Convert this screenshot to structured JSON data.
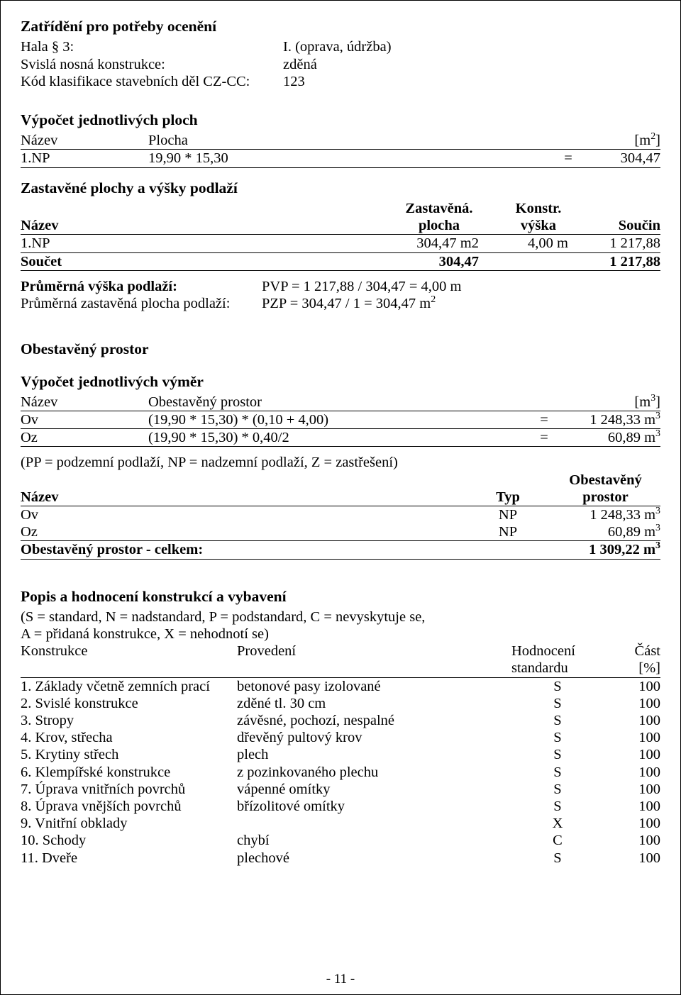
{
  "colors": {
    "text": "#000000",
    "background": "#ffffff",
    "border": "#000000"
  },
  "typography": {
    "font_family": "Times New Roman",
    "body_size_pt": 15,
    "heading_size_pt": 16
  },
  "header": {
    "title": "Zatřídění pro potřeby ocenění",
    "rows": [
      {
        "label": "Hala § 3:",
        "value": "I. (oprava, údržba)"
      },
      {
        "label": "Svislá nosná konstrukce:",
        "value": "zděná"
      },
      {
        "label": "Kód klasifikace stavebních děl CZ-CC:",
        "value": "123"
      }
    ]
  },
  "ploch": {
    "title": "Výpočet jednotlivých ploch",
    "head": {
      "c1": "Název",
      "c2": "Plocha",
      "c3": "[m",
      "c3sup": "2",
      "c3close": "]"
    },
    "row": {
      "name": "1.NP",
      "expr": "19,90 * 15,30",
      "eq": "=",
      "val": "304,47"
    }
  },
  "zp": {
    "title": "Zastavěné plochy a výšky podlaží",
    "head": {
      "c1": "Název",
      "c2a": "Zastavěná.",
      "c2b": "plocha",
      "c3a": "Konstr.",
      "c3b": "výška",
      "c4": "Součin"
    },
    "row": {
      "name": "1.NP",
      "plocha": "304,47 m2",
      "vyska": "4,00 m",
      "soucin": "1 217,88"
    },
    "sum": {
      "label": "Součet",
      "plocha": "304,47",
      "soucin": "1 217,88"
    }
  },
  "pv": {
    "r1": {
      "label": "Průměrná výška podlaží:",
      "val": "PVP = 1 217,88 / 304,47 = 4,00 m"
    },
    "r2": {
      "label": "Průměrná zastavěná plocha podlaží:",
      "val_pre": "PZP = 304,47 / 1 = 304,47 m",
      "sup": "2"
    }
  },
  "op": {
    "title": "Obestavěný prostor",
    "sub": "Výpočet jednotlivých výměr",
    "head": {
      "c1": "Název",
      "c2": "Obestavěný prostor",
      "c3pre": "[m",
      "c3sup": "3",
      "c3post": "]"
    },
    "rows": [
      {
        "name": "Ov",
        "expr": "(19,90 * 15,30) * (0,10 + 4,00)",
        "eq": "=",
        "valpre": "1 248,33 m",
        "sup": "3"
      },
      {
        "name": "Oz",
        "expr": "(19,90 * 15,30) * 0,40/2",
        "eq": "=",
        "valpre": "60,89 m",
        "sup": "3"
      }
    ],
    "note": "(PP = podzemní podlaží, NP = nadzemní podlaží, Z = zastřešení)",
    "thead": {
      "c1": "Název",
      "c2": "Typ",
      "c3a": "Obestavěný",
      "c3b": "prostor"
    },
    "trows": [
      {
        "name": "Ov",
        "typ": "NP",
        "valpre": "1 248,33 m",
        "sup": "3"
      },
      {
        "name": "Oz",
        "typ": "NP",
        "valpre": "60,89 m",
        "sup": "3"
      }
    ],
    "total": {
      "label": "Obestavěný prostor - celkem:",
      "valpre": "1 309,22 m",
      "sup": "3"
    }
  },
  "kon": {
    "title": "Popis a hodnocení konstrukcí a vybavení",
    "desc1": "(S = standard, N = nadstandard, P = podstandard, C = nevyskytuje se,",
    "desc2": "A = přidaná konstrukce, X = nehodnotí se)",
    "head": {
      "c1": "Konstrukce",
      "c2": "Provedení",
      "c3": "Hodnocení",
      "c4": "Část"
    },
    "sub": {
      "c3": "standardu",
      "c4": "[%]"
    },
    "rows": [
      {
        "c1": "1. Základy včetně zemních prací",
        "c2": "betonové pasy izolované",
        "c3": "S",
        "c4": "100"
      },
      {
        "c1": "2. Svislé konstrukce",
        "c2": "zděné tl. 30 cm",
        "c3": "S",
        "c4": "100"
      },
      {
        "c1": "3. Stropy",
        "c2": "závěsné, pochozí, nespalné",
        "c3": "S",
        "c4": "100"
      },
      {
        "c1": "4. Krov, střecha",
        "c2": "dřevěný pultový krov",
        "c3": "S",
        "c4": "100"
      },
      {
        "c1": "5. Krytiny střech",
        "c2": "plech",
        "c3": "S",
        "c4": "100"
      },
      {
        "c1": "6. Klempířské konstrukce",
        "c2": "z pozinkovaného plechu",
        "c3": "S",
        "c4": "100"
      },
      {
        "c1": "7. Úprava vnitřních povrchů",
        "c2": "vápenné omítky",
        "c3": "S",
        "c4": "100"
      },
      {
        "c1": "8. Úprava vnějších povrchů",
        "c2": "břízolitové omítky",
        "c3": "S",
        "c4": "100"
      },
      {
        "c1": "9. Vnitřní obklady",
        "c2": "",
        "c3": "X",
        "c4": "100"
      },
      {
        "c1": "10. Schody",
        "c2": "chybí",
        "c3": "C",
        "c4": "100"
      },
      {
        "c1": "11. Dveře",
        "c2": "plechové",
        "c3": "S",
        "c4": "100"
      }
    ]
  },
  "pagenum": "- 11 -"
}
